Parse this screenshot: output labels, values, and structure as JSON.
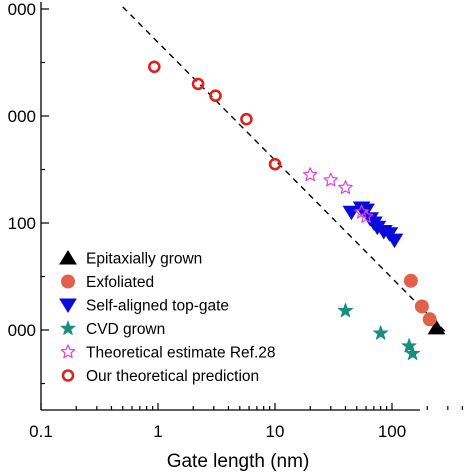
{
  "chart_data": {
    "type": "scatter",
    "xlabel": "Gate length (nm)",
    "ylabel": "",
    "xscale": "log",
    "xlim": [
      0.1,
      400
    ],
    "x_ticks": [
      {
        "value": 0.1,
        "label": "0.1"
      },
      {
        "value": 1,
        "label": "1"
      },
      {
        "value": 10,
        "label": "10"
      },
      {
        "value": 100,
        "label": "100"
      }
    ],
    "y_ticks": [
      {
        "value": 1,
        "label": "000"
      },
      {
        "value": 2,
        "label": "100"
      },
      {
        "value": 3,
        "label": "000"
      },
      {
        "value": 4,
        "label": "000"
      }
    ],
    "legend_position": "bottom-left",
    "grid": false,
    "trend_line": {
      "style": "dashed",
      "color": "#000000",
      "x": [
        0.5,
        300
      ],
      "y": [
        4.02,
        0.96
      ]
    },
    "series": [
      {
        "name": "Epitaxially grown",
        "marker": "triangle-up",
        "color": "#000000",
        "filled": true,
        "points": [
          [
            240,
            1.02
          ]
        ]
      },
      {
        "name": "Exfoliated",
        "marker": "circle",
        "color": "#e0604a",
        "filled": true,
        "points": [
          [
            145,
            1.46
          ],
          [
            180,
            1.22
          ],
          [
            210,
            1.1
          ]
        ]
      },
      {
        "name": "Self-aligned top-gate",
        "marker": "triangle-down",
        "color": "#0b0bd9",
        "filled": true,
        "points": [
          [
            45,
            2.1
          ],
          [
            55,
            2.14
          ],
          [
            60,
            2.12
          ],
          [
            65,
            2.04
          ],
          [
            70,
            2.0
          ],
          [
            75,
            1.96
          ],
          [
            85,
            1.92
          ],
          [
            95,
            1.9
          ],
          [
            105,
            1.84
          ]
        ]
      },
      {
        "name": "CVD grown",
        "marker": "star",
        "color": "#1a8c80",
        "filled": true,
        "points": [
          [
            40,
            1.18
          ],
          [
            80,
            0.97
          ],
          [
            140,
            0.85
          ],
          [
            150,
            0.78
          ]
        ]
      },
      {
        "name": "Theoretical estimate Ref.28",
        "marker": "star",
        "color": "#e040e0",
        "filled": false,
        "points": [
          [
            20,
            2.45
          ],
          [
            30,
            2.4
          ],
          [
            40,
            2.33
          ],
          [
            55,
            2.1
          ],
          [
            60,
            2.06
          ]
        ]
      },
      {
        "name": "Our theoretical prediction",
        "marker": "circle",
        "color": "#e02020",
        "filled": false,
        "points": [
          [
            0.93,
            3.46
          ],
          [
            2.2,
            3.3
          ],
          [
            3.1,
            3.19
          ],
          [
            5.7,
            2.97
          ],
          [
            10,
            2.55
          ]
        ]
      }
    ]
  }
}
